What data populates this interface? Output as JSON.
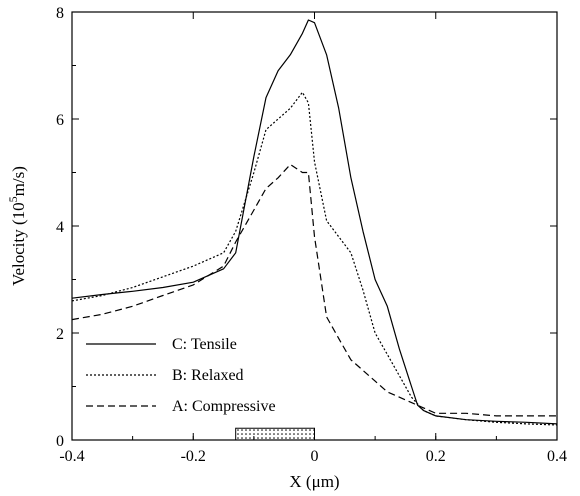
{
  "chart_data": {
    "type": "line",
    "xlabel": "X (μm)",
    "ylabel_parts": [
      "Velocity (10",
      "5",
      "m/s)"
    ],
    "xlim": [
      -0.4,
      0.4
    ],
    "ylim": [
      0,
      8
    ],
    "x_ticks": [
      -0.4,
      -0.2,
      0,
      0.2,
      0.4
    ],
    "x_tick_labels": [
      "-0.4",
      "-0.2",
      "0",
      "0.2",
      "0.4"
    ],
    "y_ticks": [
      0,
      2,
      4,
      6,
      8
    ],
    "y_tick_labels": [
      "0",
      "2",
      "4",
      "6",
      "8"
    ],
    "grid": false,
    "legend_position": "lower-left",
    "gate_region": {
      "x_start": -0.13,
      "x_end": 0.0,
      "y_bottom": 0.0,
      "y_top": 0.22
    },
    "series": [
      {
        "name": "C: Tensile",
        "style": "solid",
        "x": [
          -0.4,
          -0.35,
          -0.3,
          -0.25,
          -0.2,
          -0.15,
          -0.13,
          -0.1,
          -0.08,
          -0.06,
          -0.04,
          -0.02,
          -0.01,
          0.0,
          0.02,
          0.04,
          0.06,
          0.08,
          0.1,
          0.12,
          0.14,
          0.16,
          0.17,
          0.18,
          0.2,
          0.25,
          0.3,
          0.35,
          0.4
        ],
        "y": [
          2.65,
          2.72,
          2.78,
          2.85,
          2.95,
          3.2,
          3.5,
          5.3,
          6.4,
          6.9,
          7.2,
          7.6,
          7.85,
          7.8,
          7.2,
          6.2,
          4.9,
          3.9,
          3.0,
          2.5,
          1.7,
          1.0,
          0.65,
          0.55,
          0.45,
          0.38,
          0.35,
          0.33,
          0.3
        ]
      },
      {
        "name": "B: Relaxed",
        "style": "dotted",
        "x": [
          -0.4,
          -0.35,
          -0.3,
          -0.25,
          -0.2,
          -0.15,
          -0.13,
          -0.1,
          -0.08,
          -0.06,
          -0.04,
          -0.02,
          -0.01,
          0.0,
          0.02,
          0.04,
          0.06,
          0.08,
          0.1,
          0.12,
          0.14,
          0.16,
          0.18,
          0.2,
          0.25,
          0.3,
          0.35,
          0.4
        ],
        "y": [
          2.6,
          2.7,
          2.85,
          3.05,
          3.25,
          3.5,
          3.9,
          5.0,
          5.8,
          6.0,
          6.2,
          6.5,
          6.3,
          5.2,
          4.1,
          3.8,
          3.5,
          2.8,
          2.0,
          1.6,
          1.2,
          0.8,
          0.55,
          0.45,
          0.38,
          0.33,
          0.3,
          0.28
        ]
      },
      {
        "name": "A: Compressive",
        "style": "dashed",
        "x": [
          -0.4,
          -0.35,
          -0.3,
          -0.25,
          -0.2,
          -0.15,
          -0.13,
          -0.1,
          -0.08,
          -0.06,
          -0.04,
          -0.02,
          -0.01,
          0.0,
          0.02,
          0.04,
          0.06,
          0.08,
          0.1,
          0.12,
          0.14,
          0.16,
          0.18,
          0.2,
          0.25,
          0.3,
          0.35,
          0.4
        ],
        "y": [
          2.25,
          2.35,
          2.5,
          2.7,
          2.9,
          3.25,
          3.7,
          4.3,
          4.7,
          4.9,
          5.15,
          5.0,
          5.0,
          3.8,
          2.3,
          1.9,
          1.5,
          1.3,
          1.1,
          0.9,
          0.8,
          0.7,
          0.6,
          0.5,
          0.5,
          0.45,
          0.45,
          0.45
        ]
      }
    ]
  }
}
